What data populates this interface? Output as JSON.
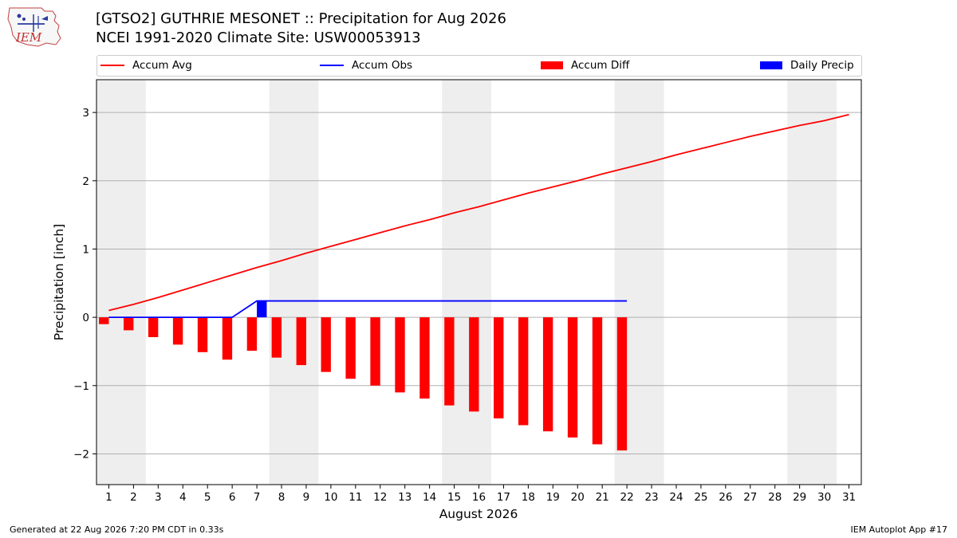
{
  "header": {
    "logo_text": "IEM",
    "title_line1": "[GTSO2] GUTHRIE MESONET :: Precipitation for Aug 2026",
    "title_line2": "NCEI 1991-2020 Climate Site: USW00053913"
  },
  "footer": {
    "left": "Generated at 22 Aug 2026 7:20 PM CDT in 0.33s",
    "right": "IEM Autoplot App #17"
  },
  "colors": {
    "avg": "#ff0000",
    "obs": "#0000ff",
    "diff": "#ff0000",
    "daily": "#0000ff",
    "weekend_shade": "#eeeeee",
    "grid": "#b0b0b0"
  },
  "chart_data": {
    "type": "bar",
    "xlabel": "August 2026",
    "ylabel": "Precipitation [inch]",
    "ylim": [
      -2.45,
      3.48
    ],
    "xlim": [
      0.5,
      31.5
    ],
    "yticks": [
      {
        "value": -2,
        "label": "−2"
      },
      {
        "value": -1,
        "label": "−1"
      },
      {
        "value": 0,
        "label": "0"
      },
      {
        "value": 1,
        "label": "1"
      },
      {
        "value": 2,
        "label": "2"
      },
      {
        "value": 3,
        "label": "3"
      }
    ],
    "days": [
      1,
      2,
      3,
      4,
      5,
      6,
      7,
      8,
      9,
      10,
      11,
      12,
      13,
      14,
      15,
      16,
      17,
      18,
      19,
      20,
      21,
      22,
      23,
      24,
      25,
      26,
      27,
      28,
      29,
      30,
      31
    ],
    "day_labels": [
      "1",
      "2",
      "3",
      "4",
      "5",
      "6",
      "7",
      "8",
      "9",
      "10",
      "11",
      "12",
      "13",
      "14",
      "15",
      "16",
      "17",
      "18",
      "19",
      "20",
      "21",
      "22",
      "23",
      "24",
      "25",
      "26",
      "27",
      "28",
      "29",
      "30",
      "31"
    ],
    "grid": "horizontal",
    "weekend_shading": [
      [
        1,
        2
      ],
      [
        8,
        9
      ],
      [
        15,
        16
      ],
      [
        22,
        23
      ],
      [
        29,
        30
      ]
    ],
    "legend_placement": "top",
    "legend": [
      {
        "label": "Accum Avg",
        "kind": "line",
        "color": "#ff0000"
      },
      {
        "label": "Accum Obs",
        "kind": "line",
        "color": "#0000ff"
      },
      {
        "label": "Accum Diff",
        "kind": "box",
        "color": "#ff0000"
      },
      {
        "label": "Daily Precip",
        "kind": "box",
        "color": "#0000ff"
      }
    ],
    "series": [
      {
        "name": "Accum Avg",
        "type": "line",
        "color": "#ff0000",
        "values": [
          0.1,
          0.19,
          0.29,
          0.4,
          0.51,
          0.62,
          0.73,
          0.83,
          0.94,
          1.04,
          1.14,
          1.24,
          1.34,
          1.43,
          1.53,
          1.62,
          1.72,
          1.82,
          1.91,
          2.0,
          2.1,
          2.19,
          2.28,
          2.38,
          2.47,
          2.56,
          2.65,
          2.73,
          2.81,
          2.88,
          2.97
        ]
      },
      {
        "name": "Accum Obs",
        "type": "line",
        "color": "#0000ff",
        "values": [
          0,
          0,
          0,
          0,
          0,
          0,
          0.24,
          0.24,
          0.24,
          0.24,
          0.24,
          0.24,
          0.24,
          0.24,
          0.24,
          0.24,
          0.24,
          0.24,
          0.24,
          0.24,
          0.24,
          0.24
        ]
      },
      {
        "name": "Accum Diff",
        "type": "bar",
        "color": "#ff0000",
        "values": [
          -0.1,
          -0.19,
          -0.29,
          -0.4,
          -0.51,
          -0.62,
          -0.49,
          -0.59,
          -0.7,
          -0.8,
          -0.9,
          -1.0,
          -1.1,
          -1.19,
          -1.29,
          -1.38,
          -1.48,
          -1.58,
          -1.67,
          -1.76,
          -1.86,
          -1.95
        ]
      },
      {
        "name": "Daily Precip",
        "type": "bar",
        "color": "#0000ff",
        "values": [
          0,
          0,
          0,
          0,
          0,
          0,
          0.24,
          0,
          0,
          0,
          0,
          0,
          0,
          0,
          0,
          0,
          0,
          0,
          0,
          0,
          0,
          0
        ]
      }
    ]
  }
}
